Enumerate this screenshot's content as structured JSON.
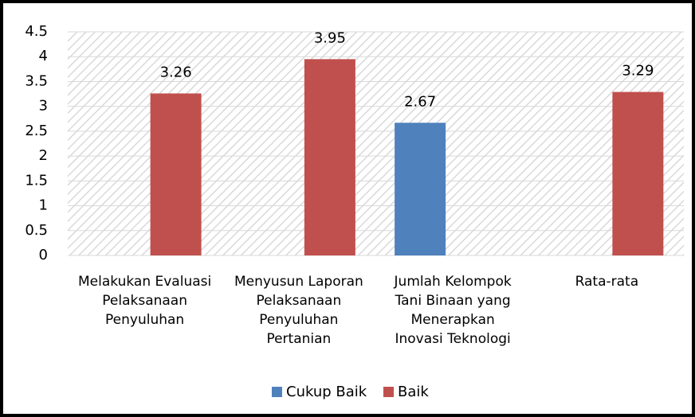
{
  "chart_data": {
    "type": "bar",
    "categories": [
      [
        "Melakukan Evaluasi",
        "Pelaksanaan",
        "Penyuluhan"
      ],
      [
        "Menyusun Laporan",
        "Pelaksanaan",
        "Penyuluhan",
        "Pertanian"
      ],
      [
        "Jumlah Kelompok",
        "Tani Binaan yang",
        "Menerapkan",
        "Inovasi Teknologi"
      ],
      [
        "Rata-rata"
      ]
    ],
    "series": [
      {
        "name": "Cukup Baik",
        "color": "#4f81bd",
        "values": [
          null,
          null,
          2.67,
          null
        ]
      },
      {
        "name": "Baik",
        "color": "#c0504d",
        "values": [
          3.26,
          3.95,
          null,
          3.29
        ]
      }
    ],
    "ylim": [
      0,
      4.5
    ],
    "yticks": [
      0,
      0.5,
      1,
      1.5,
      2,
      2.5,
      3,
      3.5,
      4,
      4.5
    ],
    "grid": true,
    "legend": "bottom"
  }
}
